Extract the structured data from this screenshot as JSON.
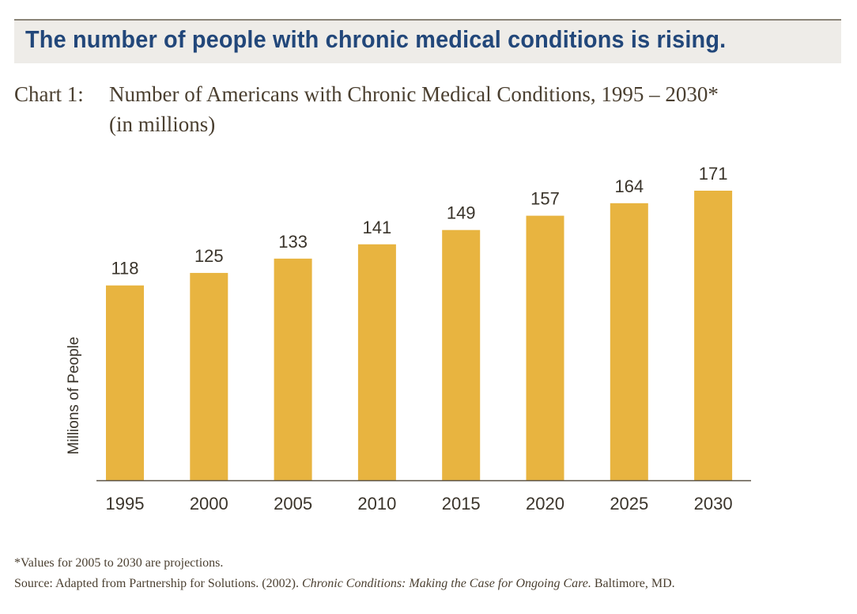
{
  "headline": "The number of people with chronic medical conditions is rising.",
  "chart_data": {
    "type": "bar",
    "title_prefix": "Chart 1:",
    "title": "Number of Americans with Chronic Medical Conditions, 1995 – 2030*",
    "subtitle": "(in millions)",
    "xlabel": "",
    "ylabel": "Millions of People",
    "categories": [
      "1995",
      "2000",
      "2005",
      "2010",
      "2015",
      "2020",
      "2025",
      "2030"
    ],
    "values": [
      118,
      125,
      133,
      141,
      149,
      157,
      164,
      171
    ],
    "ylim": [
      9,
      171
    ],
    "grid": false,
    "bar_color": "#e8b440"
  },
  "footnote": "*Values for 2005 to 2030 are projections.",
  "source": {
    "prefix": "Source: Adapted from Partnership for Solutions. (2002).",
    "italic": "Chronic Conditions: Making the Case for Ongoing Care.",
    "suffix": "Baltimore, MD."
  }
}
